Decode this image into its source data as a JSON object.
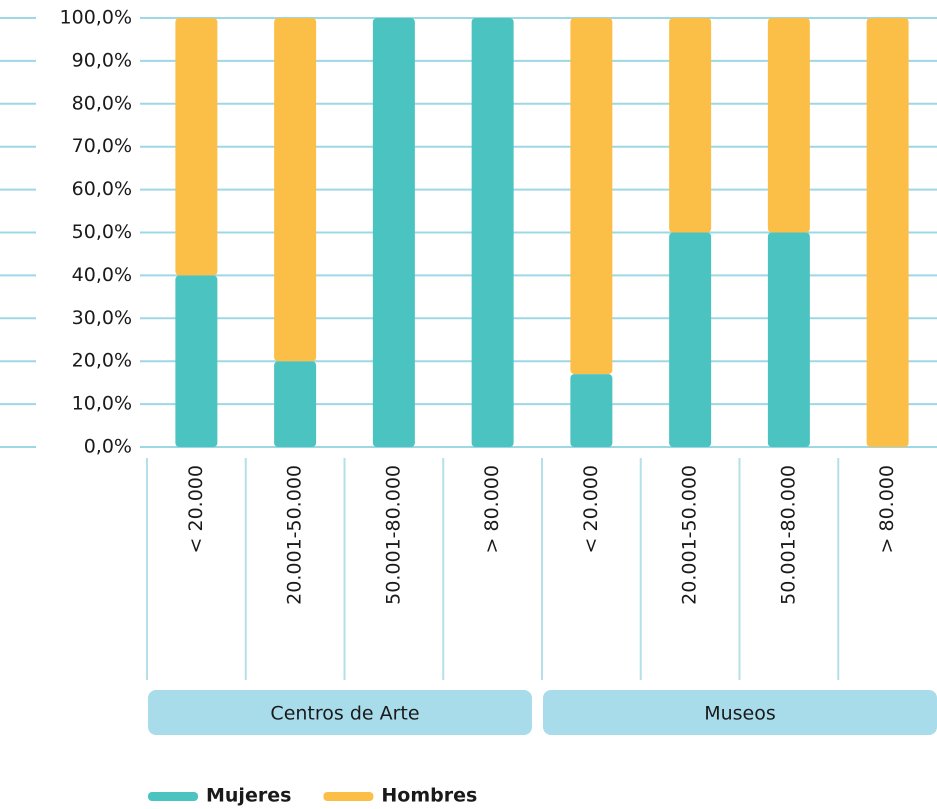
{
  "chart_data": {
    "type": "stacked-bar",
    "categories": [
      "< 20.000",
      "20.001-50.000",
      "50.001-80.000",
      "> 80.000",
      "< 20.000",
      "20.001-50.000",
      "50.001-80.000",
      "> 80.000"
    ],
    "groups": [
      "Centros de Arte",
      "Museos"
    ],
    "series": [
      {
        "name": "Mujeres",
        "color": "#4bc3c1",
        "values": [
          40,
          20,
          100,
          100,
          17,
          50,
          50,
          0
        ]
      },
      {
        "name": "Hombres",
        "color": "#fbbf47",
        "values": [
          60,
          80,
          0,
          0,
          83,
          50,
          50,
          100
        ]
      }
    ],
    "ylim": [
      0,
      100
    ],
    "yticks": [
      {
        "value": 0,
        "label": "0,0%"
      },
      {
        "value": 10,
        "label": "10,0%"
      },
      {
        "value": 20,
        "label": "20,0%"
      },
      {
        "value": 30,
        "label": "30,0%"
      },
      {
        "value": 40,
        "label": "40,0%"
      },
      {
        "value": 50,
        "label": "50,0%"
      },
      {
        "value": 60,
        "label": "60,0%"
      },
      {
        "value": 70,
        "label": "70,0%"
      },
      {
        "value": 80,
        "label": "80,0%"
      },
      {
        "value": 90,
        "label": "90,0%"
      },
      {
        "value": 100,
        "label": "100,0%"
      }
    ],
    "grid": true,
    "legend": "bottom"
  }
}
